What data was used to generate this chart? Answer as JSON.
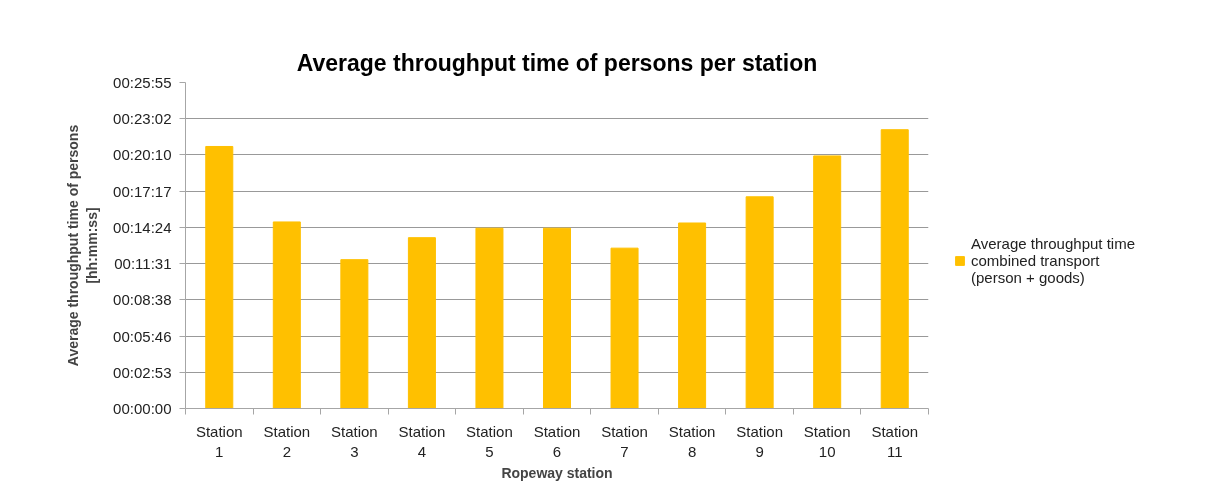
{
  "chart_data": {
    "type": "bar",
    "title": "Average throughput time of persons per station",
    "xlabel": "Ropeway station",
    "ylabel": "Average throughput time of persons [hh:mm:ss]",
    "categories": [
      "Station 1",
      "Station 2",
      "Station 3",
      "Station 4",
      "Station 5",
      "Station 6",
      "Station 7",
      "Station 8",
      "Station 9",
      "Station 10",
      "Station 11"
    ],
    "series": [
      {
        "name": "Average throughput time combined transport (person + goods)",
        "color": "#ffc000",
        "values": [
          1250,
          890,
          710,
          815,
          860,
          860,
          765,
          885,
          1010,
          1205,
          1330
        ]
      }
    ],
    "ylim": [
      0,
      1555.2
    ],
    "yticks": [
      {
        "value": 0,
        "label": "00:00:00"
      },
      {
        "value": 172.8,
        "label": "00:02:53"
      },
      {
        "value": 345.6,
        "label": "00:05:46"
      },
      {
        "value": 518.4,
        "label": "00:08:38"
      },
      {
        "value": 691.2,
        "label": "00:11:31"
      },
      {
        "value": 864,
        "label": "00:14:24"
      },
      {
        "value": 1036.8,
        "label": "00:17:17"
      },
      {
        "value": 1209.6,
        "label": "00:20:10"
      },
      {
        "value": 1382.4,
        "label": "00:23:02"
      },
      {
        "value": 1555.2,
        "label": "00:25:55"
      }
    ],
    "grid": "y",
    "legend": "right"
  }
}
